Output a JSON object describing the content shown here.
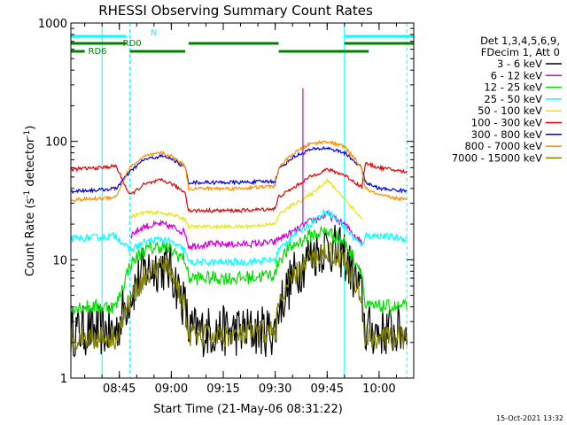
{
  "title": "RHESSI Observing Summary Count Rates",
  "xlabel": "Start Time (21-May-06 08:31:22)",
  "ylabel_main": "Count Rate (s",
  "ylabel_sup1": "-1",
  "ylabel_mid": " detector",
  "ylabel_sup2": "-1",
  "ylabel_end": ")",
  "date_stamp": "15-Oct-2021 13:32",
  "legend_header": [
    "Det 1,3,4,5,6,9,",
    "FDecim 1, Att 0"
  ],
  "colors": {
    "3 - 6 keV": "#000000",
    "6 - 12 keV": "#d400d4",
    "12 - 25 keV": "#00e000",
    "25 - 50 keV": "#00ffff",
    "50 - 100 keV": "#e6e600",
    "100 - 300 keV": "#e00000",
    "300 - 800 keV": "#0000e0",
    "800 - 7000 keV": "#ff8c00",
    "7000 - 15000 keV": "#808000"
  },
  "chart_data": {
    "type": "line",
    "title": "RHESSI Observing Summary Count Rates",
    "xlabel": "Start Time (21-May-06 08:31:22)",
    "ylabel": "Count Rate (s-1 detector-1)",
    "y_scale": "log",
    "ylim": [
      1,
      1000
    ],
    "xlim": [
      "08:31",
      "10:10"
    ],
    "x_ticks": [
      "08:45",
      "09:00",
      "09:15",
      "09:30",
      "09:45",
      "10:00"
    ],
    "y_ticks": [
      "1",
      "10",
      "100",
      "1000"
    ],
    "x": [
      "08:31",
      "08:40",
      "08:44",
      "08:48",
      "08:52",
      "08:57",
      "09:00",
      "09:04",
      "09:05",
      "09:10",
      "09:20",
      "09:30",
      "09:31",
      "09:35",
      "09:40",
      "09:45",
      "09:50",
      "09:55",
      "09:56",
      "10:00",
      "10:08"
    ],
    "series": [
      {
        "name": "3 - 6 keV",
        "values": [
          2.5,
          2.5,
          2.5,
          5,
          8,
          9,
          8,
          4,
          2.5,
          2.5,
          2.5,
          2.5,
          4,
          7,
          11,
          13,
          11,
          5,
          2.5,
          2.5,
          2.5
        ]
      },
      {
        "name": "6 - 12 keV",
        "values": [
          null,
          null,
          null,
          16,
          19,
          20,
          19,
          17,
          13,
          13.5,
          13.5,
          14,
          15,
          17,
          21,
          24,
          20,
          14,
          null,
          null,
          null
        ]
      },
      {
        "name": "12 - 25 keV",
        "values": [
          4,
          4,
          4,
          9,
          12,
          13,
          12,
          10,
          7,
          7,
          7,
          7.5,
          10,
          13,
          16,
          17.5,
          14,
          8,
          4,
          4,
          4
        ]
      },
      {
        "name": "25 - 50 keV",
        "values": [
          15,
          15.5,
          16,
          12,
          14,
          15,
          14,
          12,
          9.5,
          9.5,
          9.5,
          10,
          12,
          16,
          20,
          26,
          19,
          13,
          16,
          16,
          15
        ]
      },
      {
        "name": "50 - 100 keV",
        "values": [
          null,
          null,
          null,
          23,
          25,
          25,
          24,
          22,
          19,
          19,
          19,
          20,
          24,
          29,
          35,
          47,
          33,
          22,
          null,
          null,
          null
        ]
      },
      {
        "name": "100 - 300 keV",
        "values": [
          58,
          60,
          62,
          35,
          43,
          47,
          44,
          37,
          26,
          26,
          26,
          27,
          34,
          40,
          50,
          58,
          52,
          41,
          65,
          60,
          55
        ]
      },
      {
        "name": "300 - 800 keV",
        "values": [
          38,
          39,
          40,
          55,
          70,
          75,
          72,
          60,
          45,
          45,
          45,
          46,
          58,
          73,
          85,
          88,
          80,
          60,
          45,
          40,
          38
        ]
      },
      {
        "name": "800 - 7000 keV",
        "values": [
          32,
          33,
          34,
          60,
          74,
          80,
          75,
          62,
          40,
          40,
          40,
          42,
          60,
          78,
          95,
          100,
          90,
          60,
          40,
          35,
          32
        ]
      },
      {
        "name": "7000 - 15000 keV",
        "values": [
          2.2,
          2.2,
          2.2,
          4.5,
          7,
          9,
          8,
          4,
          2.3,
          2.3,
          2.3,
          2.5,
          4,
          7,
          10,
          12,
          10,
          4.5,
          2.2,
          2.2,
          2.2
        ]
      }
    ],
    "spike": {
      "series": "6 - 12 keV",
      "x": "09:38",
      "y": 280
    },
    "state_bars": [
      {
        "label": "N",
        "color": "#00ffff",
        "segments": [
          [
            "08:31",
            "08:47"
          ],
          [
            "09:50",
            "10:10"
          ]
        ]
      },
      {
        "label": "RD0",
        "color": "#008000",
        "segments": [
          [
            "08:31",
            "08:47"
          ],
          [
            "09:05",
            "09:31"
          ],
          [
            "09:50",
            "10:10"
          ]
        ]
      },
      {
        "label": "RD6",
        "color": "#008000",
        "segments": [
          [
            "08:31",
            "08:35"
          ],
          [
            "08:48",
            "09:04"
          ],
          [
            "09:31",
            "09:57"
          ]
        ]
      }
    ],
    "vertical_lines": [
      {
        "x": "08:40",
        "style": "solid",
        "color": "#00ffff"
      },
      {
        "x": "08:48",
        "style": "dashed",
        "color": "#00ffff"
      },
      {
        "x": "09:50",
        "style": "solid",
        "color": "#00ffff"
      },
      {
        "x": "10:08",
        "style": "dashed",
        "color": "#00ffff"
      }
    ]
  }
}
